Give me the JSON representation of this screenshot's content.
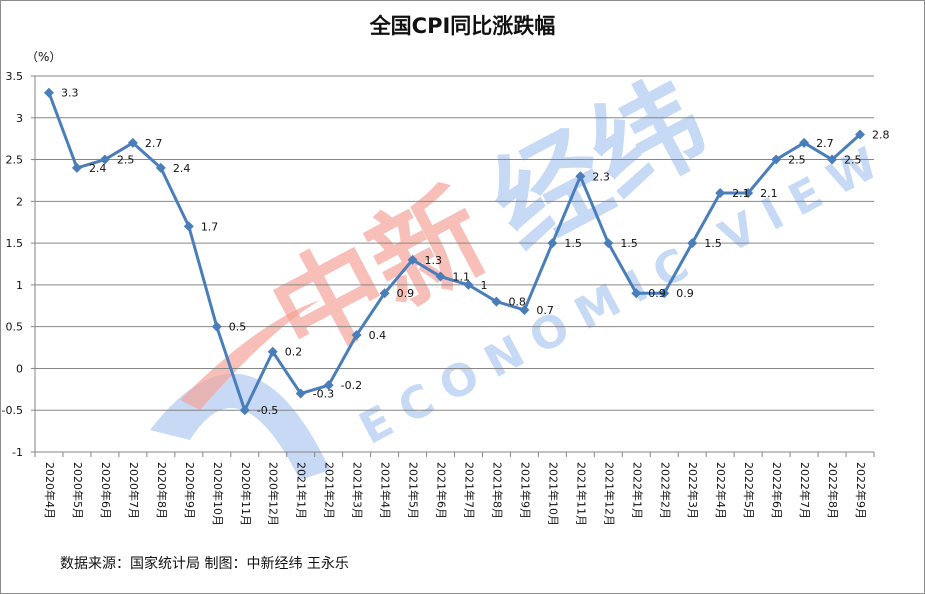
{
  "title": "全国CPI同比涨跌幅",
  "unit_label": "（%）",
  "source_note": "数据来源：国家统计局 制图：中新经纬 王永乐",
  "watermark": {
    "cn": "中新经纬",
    "en": "ECONOMIC VIEW"
  },
  "colors": {
    "line": "#4a7ebb",
    "grid": "#868686",
    "watermark_red": "#f4a49a",
    "watermark_blue": "#b9d0f3"
  },
  "chart_data": {
    "type": "line",
    "title": "全国CPI同比涨跌幅",
    "xlabel": "",
    "ylabel": "（%）",
    "ylim": [
      -1,
      3.5
    ],
    "yticks": [
      3.5,
      3,
      2.5,
      2,
      1.5,
      1,
      0.5,
      0,
      -0.5,
      -1
    ],
    "grid": true,
    "legend": "none",
    "categories": [
      "2020年4月",
      "2020年5月",
      "2020年6月",
      "2020年7月",
      "2020年8月",
      "2020年9月",
      "2020年10月",
      "2020年11月",
      "2020年12月",
      "2021年1月",
      "2021年2月",
      "2021年3月",
      "2021年4月",
      "2021年5月",
      "2021年6月",
      "2021年7月",
      "2021年8月",
      "2021年9月",
      "2021年10月",
      "2021年11月",
      "2021年12月",
      "2022年1月",
      "2022年2月",
      "2022年3月",
      "2022年4月",
      "2022年5月",
      "2022年6月",
      "2022年7月",
      "2022年8月",
      "2022年9月"
    ],
    "series": [
      {
        "name": "CPI同比",
        "values": [
          3.3,
          2.4,
          2.5,
          2.7,
          2.4,
          1.7,
          0.5,
          -0.5,
          0.2,
          -0.3,
          -0.2,
          0.4,
          0.9,
          1.3,
          1.1,
          1,
          0.8,
          0.7,
          1.5,
          2.3,
          1.5,
          0.9,
          0.9,
          1.5,
          2.1,
          2.1,
          2.5,
          2.7,
          2.5,
          2.8
        ]
      }
    ],
    "data_labels": [
      "3.3",
      "2.4",
      "2.5",
      "2.7",
      "2.4",
      "1.7",
      "0.5",
      "-0.5",
      "0.2",
      "-0.3",
      "-0.2",
      "0.4",
      "0.9",
      "1.3",
      "1.1",
      "1",
      "0.8",
      "0.7",
      "1.5",
      "2.3",
      "1.5",
      "0.9",
      "0.9",
      "1.5",
      "2.1",
      "2.1",
      "2.5",
      "2.7",
      "2.5",
      "2.8"
    ]
  }
}
